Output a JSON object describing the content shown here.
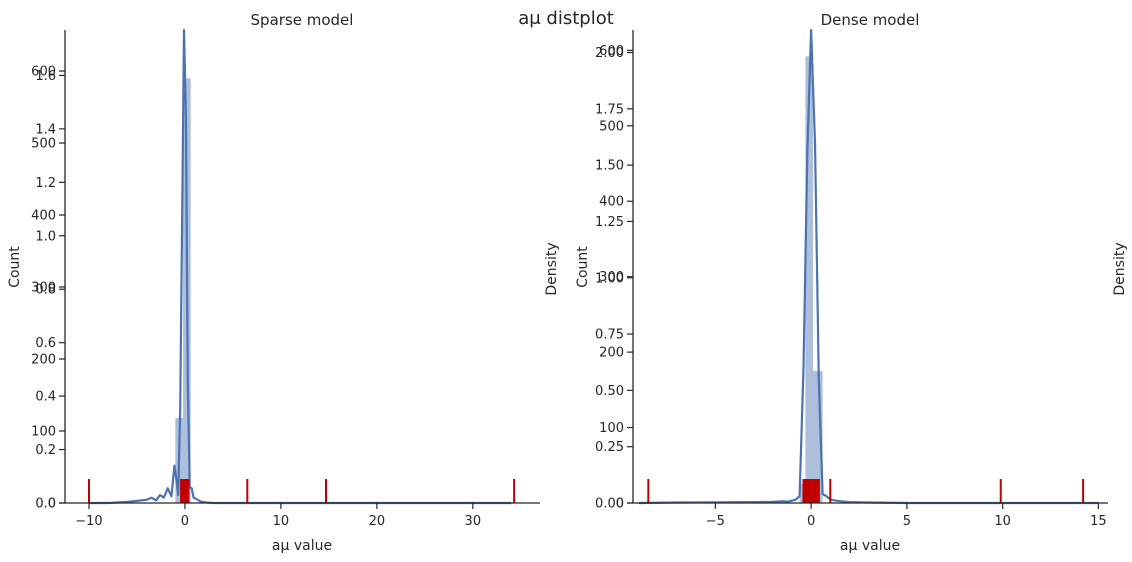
{
  "figure": {
    "suptitle": "$a_\\mu$ distplot",
    "suptitle_display": "aμ distplot"
  },
  "colors": {
    "hist": "#4c72b0",
    "kde": "#4c72b0",
    "rug": "#c00000",
    "axis": "#262626"
  },
  "chart_data": [
    {
      "type": "histogram",
      "title": "Sparse model",
      "xlabel": "$a_\\mu$ value",
      "xlabel_display": "aμ value",
      "ylabel_left": "Count",
      "ylabel_right": "Density",
      "xlim": [
        -12.5,
        37
      ],
      "xticks": [
        -10,
        0,
        10,
        20,
        30
      ],
      "count_ylim": [
        0,
        657
      ],
      "count_ticks": [
        0,
        100,
        200,
        300,
        400,
        500,
        600
      ],
      "density_ylim": [
        0,
        1.77
      ],
      "density_ticks": [
        0.0,
        0.2,
        0.4,
        0.6,
        0.8,
        1.0,
        1.2,
        1.4,
        1.6
      ],
      "density_tick_labels": [
        "0.0",
        "0.2",
        "0.4",
        "0.6",
        "0.8",
        "1.0",
        "1.2",
        "1.4",
        "1.6"
      ],
      "bins": [
        {
          "x0": -1.0,
          "x1": -0.2,
          "count": 118
        },
        {
          "x0": -0.2,
          "x1": 0.6,
          "count": 590
        }
      ],
      "kde": {
        "x": [
          -10,
          -8,
          -6,
          -5,
          -4,
          -3.5,
          -3,
          -2.6,
          -2.2,
          -1.8,
          -1.4,
          -1.1,
          -0.9,
          -0.7,
          -0.5,
          -0.3,
          -0.1,
          0.1,
          0.3,
          0.5,
          0.7,
          0.9,
          1.2,
          1.6,
          2.2,
          3,
          5,
          10,
          20,
          34
        ],
        "density": [
          0.0,
          0.0,
          0.004,
          0.008,
          0.012,
          0.02,
          0.01,
          0.03,
          0.02,
          0.055,
          0.025,
          0.14,
          0.09,
          0.03,
          0.35,
          1.05,
          1.77,
          1.45,
          0.45,
          0.06,
          0.055,
          0.02,
          0.015,
          0.006,
          0.002,
          0.0,
          0.0,
          0.0,
          0.0,
          0.0
        ]
      },
      "rug": [
        -10.0,
        -0.4,
        0.0,
        0.35,
        6.5,
        14.7,
        34.3
      ]
    },
    {
      "type": "histogram",
      "title": "Dense model",
      "xlabel": "$a_\\mu$ value",
      "xlabel_display": "aμ value",
      "ylabel_left": "Count",
      "ylabel_right": "Density",
      "xlim": [
        -9.3,
        15.5
      ],
      "xticks": [
        -5,
        0,
        5,
        10,
        15
      ],
      "count_ylim": [
        0,
        627
      ],
      "count_ticks": [
        0,
        100,
        200,
        300,
        400,
        500,
        600
      ],
      "density_ylim": [
        0,
        2.1
      ],
      "density_ticks": [
        0.0,
        0.25,
        0.5,
        0.75,
        1.0,
        1.25,
        1.5,
        1.75,
        2.0
      ],
      "density_tick_labels": [
        "0.00",
        "0.25",
        "0.50",
        "0.75",
        "1.00",
        "1.25",
        "1.50",
        "1.75",
        "2.00"
      ],
      "bins": [
        {
          "x0": -0.6,
          "x1": -0.3,
          "count": 25
        },
        {
          "x0": -0.3,
          "x1": 0.1,
          "count": 592
        },
        {
          "x0": 0.1,
          "x1": 0.6,
          "count": 175
        }
      ],
      "kde": {
        "x": [
          -9,
          -7,
          -5,
          -3,
          -2,
          -1.5,
          -1.2,
          -1.0,
          -0.8,
          -0.6,
          -0.4,
          -0.2,
          0.0,
          0.2,
          0.4,
          0.6,
          0.8,
          1.0,
          1.2,
          1.5,
          2.0,
          3.0,
          5.0,
          10.0,
          15.0
        ],
        "density": [
          0.0,
          0.002,
          0.003,
          0.004,
          0.005,
          0.008,
          0.006,
          0.01,
          0.015,
          0.03,
          0.6,
          1.55,
          2.1,
          1.6,
          0.55,
          0.04,
          0.03,
          0.015,
          0.012,
          0.008,
          0.004,
          0.002,
          0.0,
          0.0,
          0.0
        ]
      },
      "rug": [
        -8.5,
        -0.4,
        0.0,
        0.4,
        1.0,
        9.9,
        14.2
      ]
    }
  ]
}
